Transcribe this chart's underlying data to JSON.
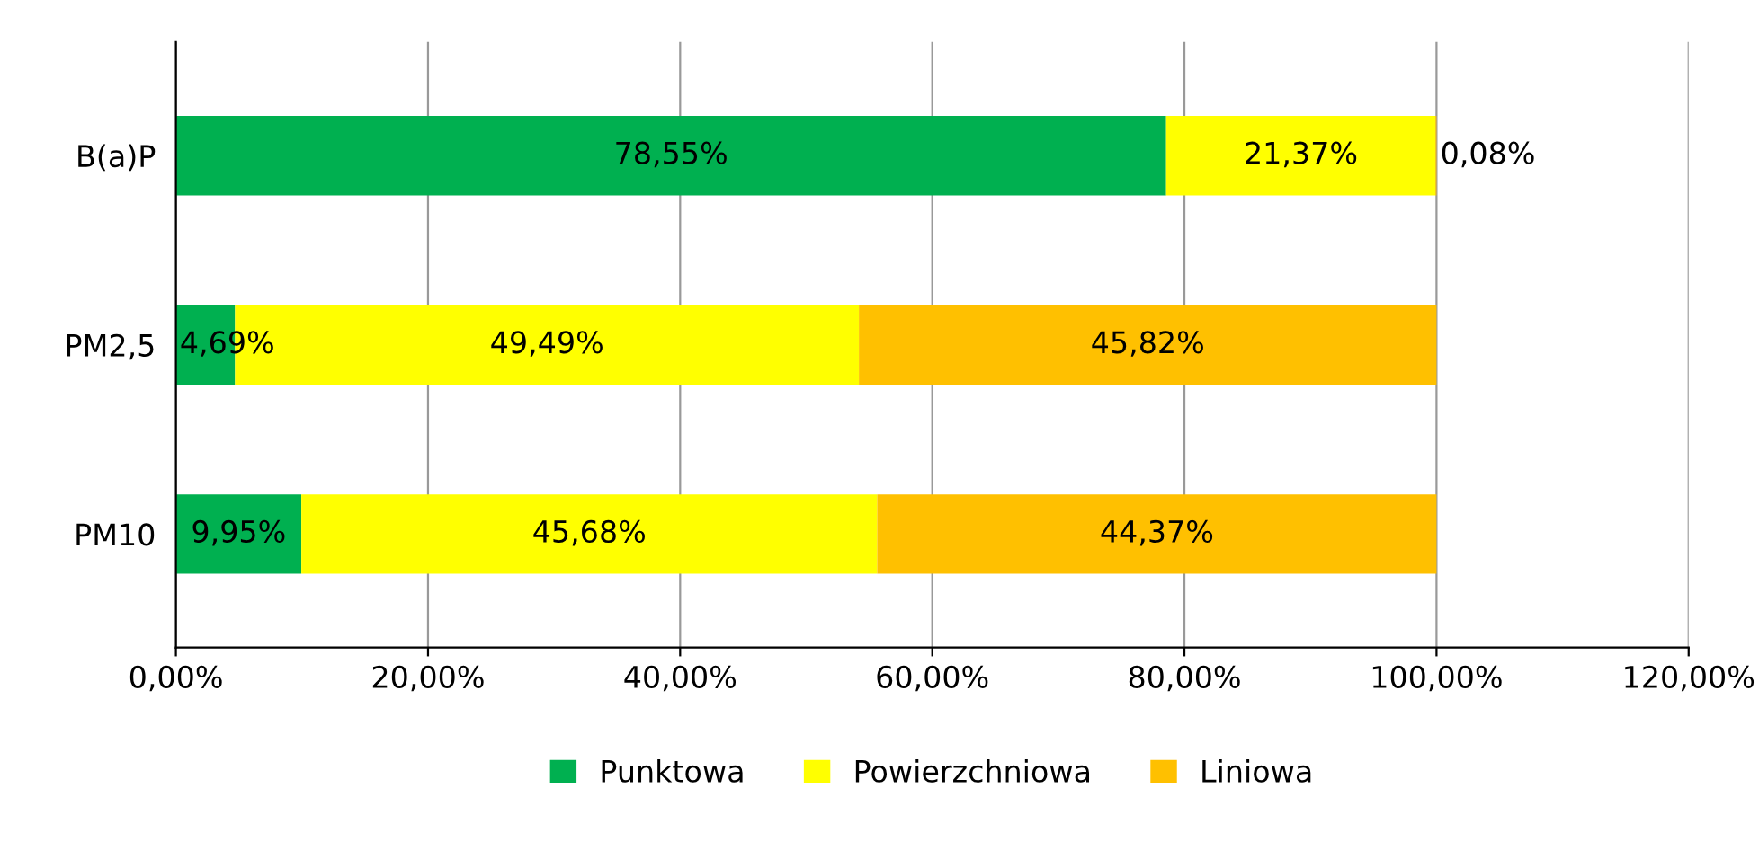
{
  "chart_data": {
    "type": "bar",
    "orientation": "horizontal",
    "stacked": true,
    "categories": [
      "B(a)P",
      "PM2,5",
      "PM10"
    ],
    "series": [
      {
        "name": "Punktowa",
        "color": "#00b050",
        "values": [
          78.55,
          4.69,
          9.95
        ],
        "value_labels": [
          "78,55%",
          "4,69%",
          "9,95%"
        ]
      },
      {
        "name": "Powierzchniowa",
        "color": "#ffff00",
        "values": [
          21.37,
          49.49,
          45.68
        ],
        "value_labels": [
          "21,37%",
          "49,49%",
          "45,68%"
        ]
      },
      {
        "name": "Liniowa",
        "color": "#ffc000",
        "values": [
          0.08,
          45.82,
          44.37
        ],
        "value_labels": [
          "0,08%",
          "45,82%",
          "44,37%"
        ]
      }
    ],
    "xlim": [
      0,
      120
    ],
    "xticks": [
      {
        "value": 0,
        "label": "0,00%"
      },
      {
        "value": 20,
        "label": "20,00%"
      },
      {
        "value": 40,
        "label": "40,00%"
      },
      {
        "value": 60,
        "label": "60,00%"
      },
      {
        "value": 80,
        "label": "80,00%"
      },
      {
        "value": 100,
        "label": "100,00%"
      },
      {
        "value": 120,
        "label": "120,00%"
      }
    ],
    "grid": "x",
    "legend": "bottom"
  }
}
